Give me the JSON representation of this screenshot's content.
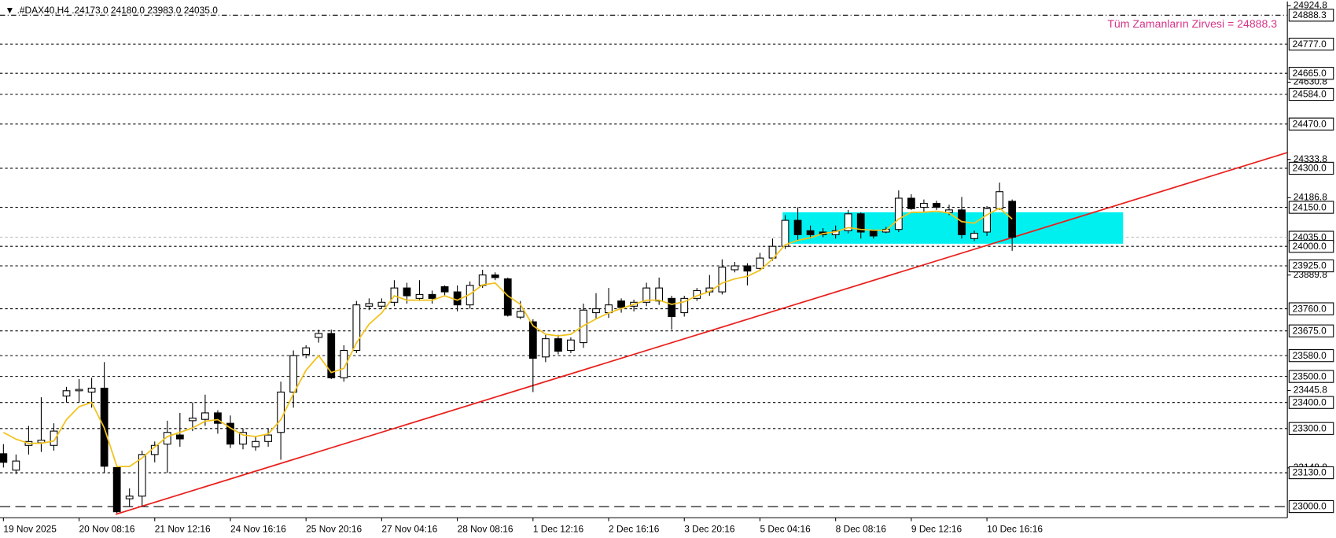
{
  "chart_data": {
    "type": "candlestick",
    "title": "▼ .#DAX40,H4 .24173.0 24180.0 23983.0 24035.0",
    "annotation": "Tüm Zamanların Zirvesi = 24888.3",
    "categories": [
      "19 Nov 2025",
      null,
      null,
      null,
      null,
      null,
      "20 Nov 08:16",
      null,
      null,
      null,
      null,
      null,
      "21 Nov 12:16",
      null,
      null,
      null,
      null,
      null,
      "24 Nov 16:16",
      null,
      null,
      null,
      null,
      null,
      "25 Nov 20:16",
      null,
      null,
      null,
      null,
      null,
      "27 Nov 04:16",
      null,
      null,
      null,
      null,
      null,
      "28 Nov 08:16",
      null,
      null,
      null,
      null,
      null,
      "1 Dec 12:16",
      null,
      null,
      null,
      null,
      null,
      "2 Dec 16:16",
      null,
      null,
      null,
      null,
      null,
      "3 Dec 20:16",
      null,
      null,
      null,
      null,
      null,
      "5 Dec 04:16",
      null,
      null,
      null,
      null,
      null,
      "8 Dec 08:16",
      null,
      null,
      null,
      null,
      null,
      "9 Dec 12:16",
      null,
      null,
      null,
      null,
      null,
      "10 Dec 16:16",
      null,
      null
    ],
    "open": [
      23203,
      23140,
      23235,
      23245,
      23235,
      23425,
      23445,
      23440,
      23455,
      23150,
      23030,
      23040,
      23200,
      23240,
      23275,
      23330,
      23335,
      23360,
      23320,
      23240,
      23230,
      23250,
      23285,
      23440,
      23585,
      23650,
      23665,
      23495,
      23600,
      23770,
      23770,
      23785,
      23840,
      23800,
      23815,
      23845,
      23825,
      23775,
      23850,
      23890,
      23875,
      23728,
      23710,
      23575,
      23645,
      23600,
      23630,
      23745,
      23745,
      23790,
      23770,
      23785,
      23790,
      23800,
      23745,
      23800,
      23825,
      23825,
      23910,
      23925,
      23915,
      23955,
      24000,
      24100,
      24060,
      24055,
      24045,
      24060,
      24125,
      24060,
      24055,
      24065,
      24185,
      24150,
      24165,
      24130,
      24140,
      24030,
      24055,
      24145,
      24173
    ],
    "high": [
      23240,
      23200,
      23310,
      23420,
      23320,
      23460,
      23490,
      23495,
      23555,
      23150,
      23070,
      23215,
      23250,
      23330,
      23360,
      23400,
      23430,
      23370,
      23350,
      23300,
      23270,
      23300,
      23480,
      23600,
      23620,
      23680,
      23680,
      23620,
      23790,
      23800,
      23800,
      23870,
      23860,
      23870,
      23830,
      23850,
      23850,
      23865,
      23910,
      23900,
      23880,
      23790,
      23720,
      23660,
      23660,
      23650,
      23780,
      23820,
      23840,
      23800,
      23795,
      23860,
      23880,
      23810,
      23810,
      23840,
      23890,
      23950,
      23940,
      23935,
      23975,
      24030,
      24120,
      24150,
      24080,
      24070,
      24080,
      24140,
      24130,
      24065,
      24075,
      24215,
      24200,
      24180,
      24175,
      24160,
      24190,
      24060,
      24155,
      24245,
      24180
    ],
    "low": [
      23150,
      23125,
      23200,
      23210,
      23215,
      23400,
      23400,
      23380,
      23130,
      22975,
      23000,
      23000,
      23170,
      23130,
      23230,
      23290,
      23310,
      23280,
      23225,
      23220,
      23215,
      23230,
      23180,
      23380,
      23570,
      23630,
      23490,
      23480,
      23590,
      23755,
      23760,
      23770,
      23780,
      23790,
      23780,
      23810,
      23750,
      23760,
      23840,
      23870,
      23730,
      23720,
      23440,
      23555,
      23585,
      23590,
      23610,
      23720,
      23725,
      23745,
      23750,
      23770,
      23775,
      23680,
      23730,
      23790,
      23810,
      23815,
      23900,
      23850,
      23905,
      23945,
      23990,
      24020,
      24030,
      24035,
      24030,
      24050,
      24030,
      24030,
      24050,
      24055,
      24140,
      24130,
      24140,
      24120,
      24030,
      24020,
      24040,
      24140,
      23983
    ],
    "close": [
      23170,
      23175,
      23250,
      23255,
      23290,
      23445,
      23450,
      23455,
      23155,
      22980,
      23040,
      23200,
      23235,
      23285,
      23260,
      23340,
      23360,
      23320,
      23240,
      23285,
      23250,
      23275,
      23440,
      23580,
      23610,
      23665,
      23495,
      23600,
      23775,
      23780,
      23785,
      23840,
      23810,
      23815,
      23800,
      23825,
      23775,
      23850,
      23890,
      23880,
      23735,
      23750,
      23570,
      23645,
      23597,
      23640,
      23755,
      23760,
      23775,
      23765,
      23785,
      23840,
      23840,
      23730,
      23800,
      23830,
      23840,
      23920,
      23925,
      23905,
      23955,
      24000,
      24100,
      24045,
      24045,
      24045,
      24060,
      24125,
      24055,
      24040,
      24065,
      24185,
      24145,
      24165,
      24150,
      24140,
      24045,
      24050,
      24145,
      24210,
      24035
    ],
    "ma": {
      "color": "#f2c21b",
      "values": [
        23285,
        23259,
        23243,
        23243,
        23252,
        23334,
        23384,
        23400,
        23302,
        23154,
        23154,
        23187,
        23229,
        23269,
        23285,
        23302,
        23328,
        23334,
        23302,
        23275,
        23269,
        23279,
        23334,
        23433,
        23524,
        23580,
        23515,
        23531,
        23629,
        23701,
        23744,
        23810,
        23793,
        23793,
        23793,
        23810,
        23793,
        23816,
        23852,
        23859,
        23810,
        23777,
        23695,
        23662,
        23656,
        23662,
        23695,
        23721,
        23744,
        23761,
        23777,
        23793,
        23793,
        23777,
        23787,
        23810,
        23826,
        23859,
        23875,
        23885,
        23908,
        23951,
        24006,
        24023,
        24033,
        24049,
        24056,
        24072,
        24065,
        24062,
        24062,
        24105,
        24131,
        24131,
        24135,
        24128,
        24095,
        24089,
        24121,
        24147,
        24105
      ]
    },
    "trendline": {
      "color": "#e8201c",
      "x": [
        8.9,
        101.8
      ],
      "values": [
        22970,
        24360
      ]
    },
    "zone": {
      "color": "#00f0f0",
      "x": [
        61.8,
        88.8
      ],
      "ylim": [
        24010,
        24131
      ]
    },
    "ylim": [
      22957,
      24941
    ],
    "yticks": [
      24924.8,
      24630.8,
      24333.8,
      24186.8,
      23889.8,
      23445.8,
      23148.8
    ],
    "levels": [
      {
        "value": 24888.3,
        "label": "24888.3",
        "style": "dash-dot"
      },
      {
        "value": 24777,
        "label": "24777.0",
        "style": "dashed"
      },
      {
        "value": 24665,
        "label": "24665.0",
        "style": "dashed"
      },
      {
        "value": 24584,
        "label": "24584.0",
        "style": "dashed"
      },
      {
        "value": 24470,
        "label": "24470.0",
        "style": "dashed"
      },
      {
        "value": 24300,
        "label": "24300.0",
        "style": "dashed"
      },
      {
        "value": 24150,
        "label": "24150.0",
        "style": "dashed"
      },
      {
        "value": 24035,
        "label": "24035.0",
        "style": "solid"
      },
      {
        "value": 24000,
        "label": "24000.0",
        "style": "dashed"
      },
      {
        "value": 23925,
        "label": "23925.0",
        "style": "dashed"
      },
      {
        "value": 23760,
        "label": "23760.0",
        "style": "dashed"
      },
      {
        "value": 23675,
        "label": "23675.0",
        "style": "dashed"
      },
      {
        "value": 23580,
        "label": "23580.0",
        "style": "dashed"
      },
      {
        "value": 23500,
        "label": "23500.0",
        "style": "dashed"
      },
      {
        "value": 23400,
        "label": "23400.0",
        "style": "dashed"
      },
      {
        "value": 23300,
        "label": "23300.0",
        "style": "dashed"
      },
      {
        "value": 23130,
        "label": "23130.0",
        "style": "dashed"
      },
      {
        "value": 23000,
        "label": "23000.0",
        "style": "long-dash"
      }
    ],
    "up_color": "#ffffff",
    "down_color": "#000000"
  }
}
